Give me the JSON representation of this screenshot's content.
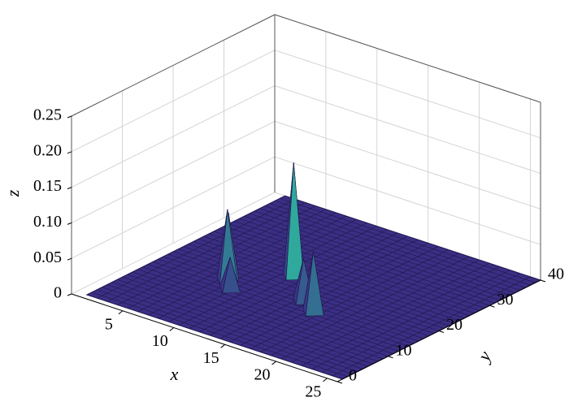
{
  "chart_data": {
    "type": "surface",
    "x_label": "x",
    "y_label": "y",
    "z_label": "z",
    "xlim": [
      0,
      26
    ],
    "ylim": [
      0,
      40
    ],
    "zlim": [
      0,
      0.25
    ],
    "xticks": [
      5,
      10,
      15,
      20,
      25
    ],
    "yticks": [
      0,
      10,
      20,
      30,
      40
    ],
    "zticks": [
      0,
      0.05,
      {
        "value": 0.1,
        "label": "0.10"
      },
      0.15,
      {
        "value": 0.2,
        "label": "0.20"
      },
      0.25
    ],
    "grid": true,
    "colormap": [
      "#3b2c86",
      "#2cc2a0"
    ],
    "peaks": {
      "x": [
        11,
        16.4,
        7.6,
        7.2,
        8.8,
        14.5
      ],
      "y": [
        21.6,
        14.6,
        15.4,
        16.4,
        13.5,
        16.5
      ],
      "z": [
        0.16,
        0.085,
        0.1,
        0.09,
        0.045,
        0.06
      ]
    }
  }
}
